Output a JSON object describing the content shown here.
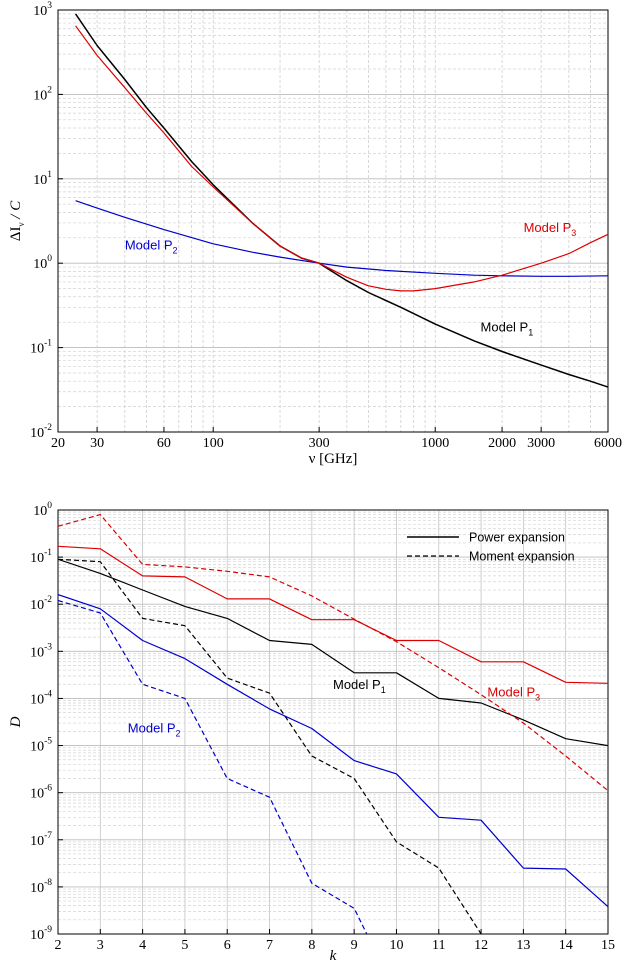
{
  "chart_data": [
    {
      "type": "line",
      "ylabel": "ΔI_ν / C",
      "xlabel": "ν  [GHz]",
      "xscale": "log",
      "yscale": "log",
      "xlim": [
        20,
        6000
      ],
      "ylim_exponents": [
        -2,
        3
      ],
      "grid": true,
      "x_ticks": [
        20,
        30,
        60,
        100,
        300,
        1000,
        2000,
        3000,
        6000
      ],
      "y_tick_base": "10",
      "y_ticks": [
        -2,
        -1,
        0,
        1,
        2,
        3
      ],
      "series": [
        {
          "name": "Model P1",
          "label_main": "Model P",
          "label_sub": "1",
          "color": "#000000",
          "x": [
            24,
            30,
            40,
            50,
            60,
            80,
            100,
            150,
            200,
            250,
            300,
            400,
            500,
            700,
            1000,
            1500,
            2000,
            3000,
            4000,
            5000,
            6000
          ],
          "y": [
            900,
            380,
            150,
            70,
            40,
            16,
            8.5,
            3.0,
            1.6,
            1.15,
            1.0,
            0.62,
            0.45,
            0.3,
            0.19,
            0.12,
            0.09,
            0.062,
            0.048,
            0.04,
            0.034
          ]
        },
        {
          "name": "Model P2",
          "label_main": "Model P",
          "label_sub": "2",
          "color": "#0000cc",
          "x": [
            24,
            30,
            40,
            60,
            100,
            150,
            200,
            300,
            400,
            600,
            1000,
            1500,
            2000,
            3000,
            4000,
            6000
          ],
          "y": [
            5.5,
            4.5,
            3.5,
            2.5,
            1.7,
            1.35,
            1.18,
            1.0,
            0.9,
            0.82,
            0.76,
            0.72,
            0.71,
            0.7,
            0.7,
            0.71
          ]
        },
        {
          "name": "Model P3",
          "label_main": "Model P",
          "label_sub": "3",
          "color": "#dd0000",
          "x": [
            24,
            30,
            40,
            50,
            60,
            80,
            100,
            150,
            200,
            250,
            300,
            400,
            500,
            600,
            700,
            800,
            1000,
            1500,
            2000,
            3000,
            4000,
            5000,
            6000
          ],
          "y": [
            650,
            290,
            120,
            60,
            35,
            14,
            8,
            3.0,
            1.6,
            1.15,
            1.0,
            0.68,
            0.54,
            0.49,
            0.47,
            0.47,
            0.5,
            0.6,
            0.72,
            1.0,
            1.3,
            1.75,
            2.2
          ]
        }
      ]
    },
    {
      "type": "line",
      "ylabel": "D",
      "xlabel": "k",
      "xscale": "linear",
      "yscale": "log",
      "xlim": [
        2,
        15
      ],
      "ylim_exponents": [
        -9,
        0
      ],
      "grid": true,
      "x_ticks": [
        2,
        3,
        4,
        5,
        6,
        7,
        8,
        9,
        10,
        11,
        12,
        13,
        14,
        15
      ],
      "y_tick_base": "10",
      "y_ticks": [
        -9,
        -8,
        -7,
        -6,
        -5,
        -4,
        -3,
        -2,
        -1,
        0
      ],
      "legend": {
        "position": "top-right",
        "entries": [
          {
            "label": "Power expansion",
            "style": "solid"
          },
          {
            "label": "Moment expansion",
            "style": "dashed"
          }
        ]
      },
      "annotations": [
        {
          "main": "Model P",
          "sub": "1",
          "color": "#000000"
        },
        {
          "main": "Model P",
          "sub": "2",
          "color": "#0000cc"
        },
        {
          "main": "Model P",
          "sub": "3",
          "color": "#dd0000"
        }
      ],
      "series": [
        {
          "name": "Model P1 power",
          "color": "#000000",
          "dash": false,
          "x": [
            2,
            3,
            4,
            5,
            6,
            7,
            8,
            9,
            10,
            11,
            12,
            13,
            14,
            15
          ],
          "y": [
            0.09,
            0.045,
            0.02,
            0.009,
            0.005,
            0.0017,
            0.0014,
            0.00035,
            0.00035,
            0.0001,
            8e-05,
            3.5e-05,
            1.4e-05,
            1e-05
          ]
        },
        {
          "name": "Model P1 moment",
          "color": "#000000",
          "dash": true,
          "x": [
            2,
            3,
            4,
            5,
            6,
            7,
            8,
            9,
            10,
            11,
            12
          ],
          "y": [
            0.09,
            0.08,
            0.005,
            0.0035,
            0.00027,
            0.00013,
            6e-06,
            2e-06,
            9e-08,
            2.5e-08,
            1e-09
          ]
        },
        {
          "name": "Model P2 power",
          "color": "#0000cc",
          "dash": false,
          "x": [
            2,
            3,
            4,
            5,
            6,
            7,
            8,
            9,
            10,
            11,
            12,
            13,
            14,
            15
          ],
          "y": [
            0.016,
            0.008,
            0.0017,
            0.0007,
            0.0002,
            6e-05,
            2.3e-05,
            4.8e-06,
            2.5e-06,
            3e-07,
            2.6e-07,
            2.5e-08,
            2.4e-08,
            3.8e-09
          ]
        },
        {
          "name": "Model P2 moment",
          "color": "#0000cc",
          "dash": true,
          "x": [
            2,
            3,
            4,
            5,
            6,
            7,
            8,
            9,
            9.3
          ],
          "y": [
            0.012,
            0.0065,
            0.0002,
            0.0001,
            2e-06,
            8e-07,
            1.2e-08,
            3.5e-09,
            1e-09
          ]
        },
        {
          "name": "Model P3 power",
          "color": "#dd0000",
          "dash": false,
          "x": [
            2,
            3,
            4,
            5,
            6,
            7,
            8,
            9,
            10,
            11,
            12,
            13,
            14,
            15
          ],
          "y": [
            0.17,
            0.15,
            0.04,
            0.038,
            0.013,
            0.013,
            0.0047,
            0.0047,
            0.0017,
            0.0017,
            0.0006,
            0.0006,
            0.00022,
            0.00021
          ]
        },
        {
          "name": "Model P3 moment",
          "color": "#dd0000",
          "dash": true,
          "x": [
            2,
            3,
            4,
            5,
            6,
            7,
            8,
            9,
            10,
            11,
            12,
            13,
            14,
            15
          ],
          "y": [
            0.45,
            0.8,
            0.07,
            0.062,
            0.05,
            0.038,
            0.015,
            0.0048,
            0.0016,
            0.00045,
            0.00012,
            3e-05,
            6e-06,
            1.1e-06
          ]
        }
      ]
    }
  ]
}
